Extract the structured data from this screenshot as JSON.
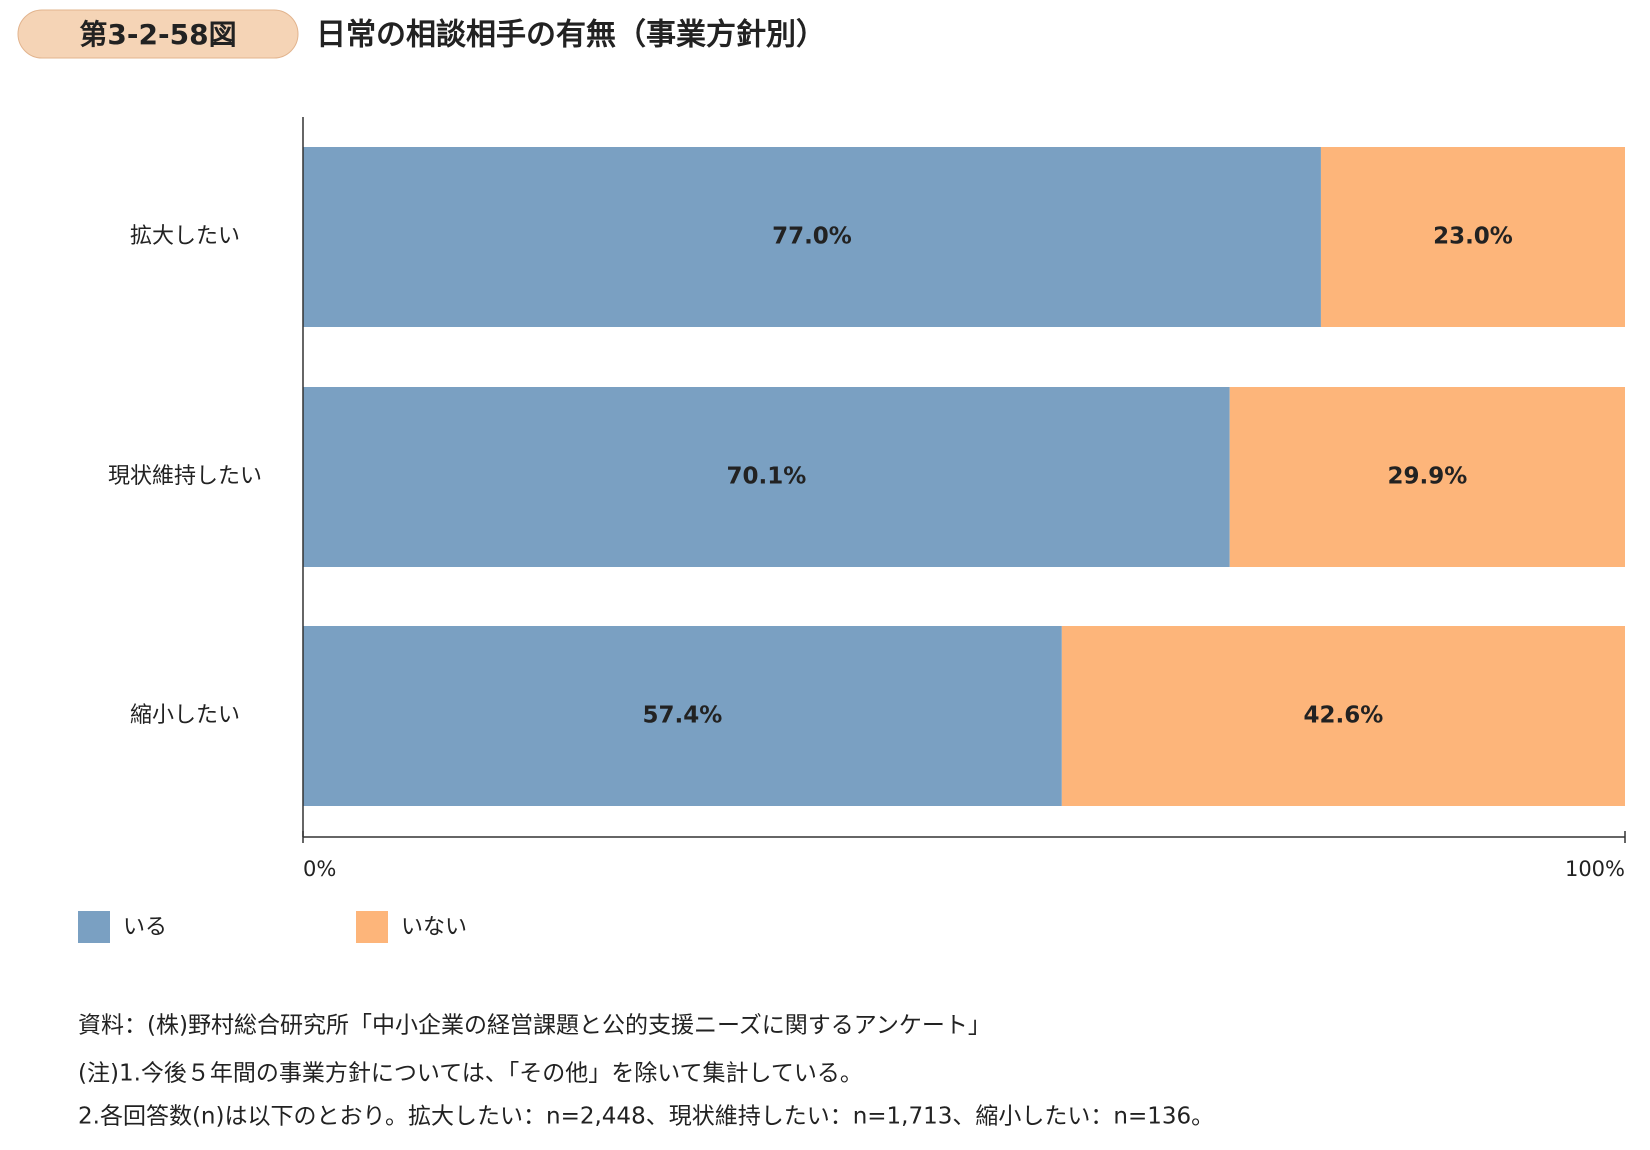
{
  "chart_data": {
    "type": "stacked-barh",
    "figure_label": "第3-2-58図",
    "title": "日常の相談相手の有無（事業方針別）",
    "categories": [
      "拡大したい",
      "現状維持したい",
      "縮小したい"
    ],
    "series": [
      {
        "name": "いる",
        "color": "#7aa0c2",
        "values": [
          77.0,
          70.1,
          57.4
        ],
        "value_labels": [
          "77.0%",
          "70.1%",
          "57.4%"
        ]
      },
      {
        "name": "いない",
        "color": "#fdb57a",
        "values": [
          23.0,
          29.9,
          42.6
        ],
        "value_labels": [
          "23.0%",
          "29.9%",
          "42.6%"
        ]
      }
    ],
    "xlim": [
      0,
      100
    ],
    "xticks": [
      {
        "value": 0,
        "label": "0%"
      },
      {
        "value": 100,
        "label": "100%"
      }
    ],
    "notes": [
      "資料：(株)野村総合研究所「中小企業の経営課題と公的支援ニーズに関するアンケート」",
      "(注)1.今後５年間の事業方針については、「その他」を除いて集計している。",
      "2.各回答数(n)は以下のとおり。拡大したい：n=2,448、現状維持したい：n=1,713、縮小したい：n=136。"
    ]
  }
}
